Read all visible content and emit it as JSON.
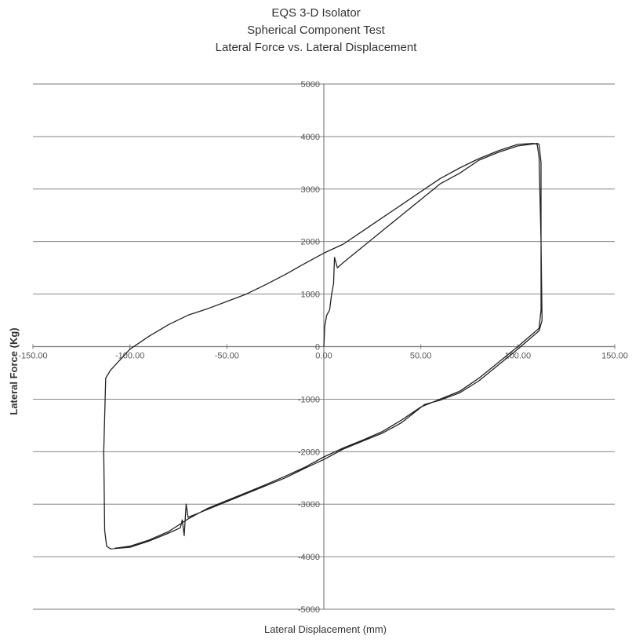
{
  "chart_data": {
    "type": "line",
    "title_lines": [
      "EQS 3-D Isolator",
      "Spherical Component Test",
      "Lateral Force vs. Lateral Displacement"
    ],
    "xlabel": "Lateral Displacement (mm)",
    "ylabel": "Lateral Force (Kg)",
    "xlim": [
      -150,
      150
    ],
    "ylim": [
      -5000,
      5000
    ],
    "x_ticks": [
      -150,
      -100,
      -50,
      0,
      50,
      100,
      150
    ],
    "x_tick_labels": [
      "-150.00",
      "-100.00",
      "-50.00",
      "0.00",
      "50.00",
      "100.00",
      "150.00"
    ],
    "y_ticks": [
      5000,
      4000,
      3000,
      2000,
      1000,
      0,
      -1000,
      -2000,
      -3000,
      -4000,
      -5000
    ],
    "y_tick_labels": [
      "5000",
      "4000",
      "3000",
      "2000",
      "1000",
      "0",
      "-1000",
      "-2000",
      "-3000",
      "-4000",
      "-5000"
    ],
    "grid": "horizontal",
    "legend": "none",
    "line_color": "#222222",
    "series": [
      {
        "points": [
          [
            0,
            0
          ],
          [
            0.5,
            400
          ],
          [
            1.5,
            600
          ],
          [
            3,
            700
          ],
          [
            4,
            1000
          ],
          [
            5,
            1200
          ],
          [
            5.5,
            1700
          ],
          [
            7,
            1500
          ],
          [
            10,
            1600
          ],
          [
            20,
            1900
          ],
          [
            30,
            2200
          ],
          [
            40,
            2500
          ],
          [
            50,
            2800
          ],
          [
            60,
            3100
          ],
          [
            70,
            3300
          ],
          [
            80,
            3550
          ],
          [
            90,
            3700
          ],
          [
            100,
            3820
          ],
          [
            108,
            3860
          ],
          [
            110,
            3870
          ],
          [
            111,
            3850
          ],
          [
            112,
            3500
          ],
          [
            112,
            2000
          ],
          [
            112.5,
            500
          ],
          [
            111,
            300
          ],
          [
            100,
            -50
          ],
          [
            90,
            -350
          ],
          [
            80,
            -650
          ],
          [
            70,
            -880
          ],
          [
            60,
            -1020
          ],
          [
            52,
            -1100
          ],
          [
            40,
            -1450
          ],
          [
            30,
            -1650
          ],
          [
            20,
            -1800
          ],
          [
            10,
            -1950
          ],
          [
            0,
            -2150
          ],
          [
            -10,
            -2320
          ],
          [
            -20,
            -2500
          ],
          [
            -30,
            -2650
          ],
          [
            -40,
            -2800
          ],
          [
            -50,
            -2950
          ],
          [
            -60,
            -3100
          ],
          [
            -70,
            -3250
          ],
          [
            -71,
            -3000
          ],
          [
            -72,
            -3600
          ],
          [
            -73,
            -3300
          ],
          [
            -74,
            -3450
          ],
          [
            -80,
            -3550
          ],
          [
            -90,
            -3700
          ],
          [
            -100,
            -3820
          ],
          [
            -110,
            -3850
          ],
          [
            -112,
            -3800
          ],
          [
            -113,
            -3500
          ],
          [
            -113.5,
            -2000
          ],
          [
            -112.5,
            -600
          ],
          [
            -110,
            -450
          ],
          [
            -100,
            -50
          ],
          [
            -90,
            200
          ],
          [
            -80,
            420
          ],
          [
            -70,
            600
          ],
          [
            -60,
            720
          ],
          [
            -50,
            860
          ],
          [
            -40,
            1000
          ],
          [
            -30,
            1180
          ],
          [
            -20,
            1370
          ],
          [
            -10,
            1580
          ],
          [
            0,
            1780
          ],
          [
            10,
            1950
          ],
          [
            20,
            2200
          ],
          [
            30,
            2450
          ],
          [
            40,
            2700
          ],
          [
            50,
            2950
          ],
          [
            60,
            3200
          ],
          [
            70,
            3400
          ],
          [
            80,
            3580
          ],
          [
            90,
            3730
          ],
          [
            100,
            3850
          ],
          [
            108,
            3870
          ],
          [
            110,
            3850
          ],
          [
            111,
            3600
          ],
          [
            112,
            2000
          ],
          [
            112,
            700
          ],
          [
            111,
            350
          ],
          [
            100,
            0
          ],
          [
            90,
            -300
          ],
          [
            80,
            -600
          ],
          [
            70,
            -850
          ],
          [
            60,
            -1000
          ],
          [
            50,
            -1150
          ],
          [
            40,
            -1400
          ],
          [
            30,
            -1620
          ],
          [
            20,
            -1780
          ],
          [
            10,
            -1930
          ],
          [
            0,
            -2100
          ],
          [
            -10,
            -2300
          ],
          [
            -20,
            -2470
          ],
          [
            -30,
            -2630
          ],
          [
            -40,
            -2780
          ],
          [
            -50,
            -2930
          ],
          [
            -60,
            -3080
          ],
          [
            -70,
            -3280
          ],
          [
            -80,
            -3520
          ],
          [
            -90,
            -3680
          ],
          [
            -100,
            -3800
          ],
          [
            -108,
            -3840
          ]
        ]
      }
    ]
  }
}
